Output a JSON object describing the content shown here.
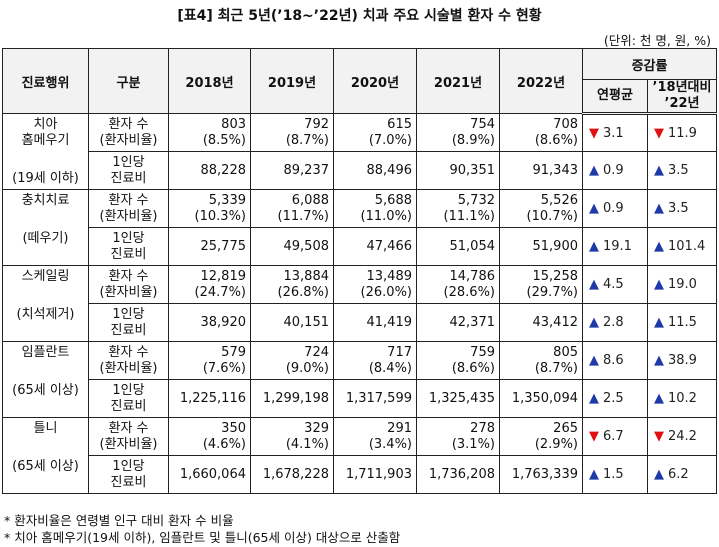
{
  "header": {
    "title": "[표4] 최근 5년(’18~’22년) 치과 주요 시술별 환자 수 현황",
    "unit": "(단위: 천 명, 원, %)"
  },
  "table": {
    "columns": [
      "진료행위",
      "구분",
      "2018년",
      "2019년",
      "2020년",
      "2021년",
      "2022년"
    ],
    "change_header": "증감률",
    "change_columns": [
      [
        "연평균"
      ],
      [
        "’18년대비",
        "’22년"
      ]
    ],
    "groups": [
      {
        "name": [
          "치아",
          "홈메우기"
        ],
        "sub": "(19세 이하)",
        "rows": [
          {
            "label": [
              "환자 수",
              "(환자비율)"
            ],
            "values": [
              [
                "803",
                "(8.5%)"
              ],
              [
                "792",
                "(8.7%)"
              ],
              [
                "615",
                "(7.0%)"
              ],
              [
                "754",
                "(8.9%)"
              ],
              [
                "708",
                "(8.6%)"
              ]
            ],
            "changes": [
              [
                "▼",
                "3.1"
              ],
              [
                "▼",
                "11.9"
              ]
            ]
          },
          {
            "label": [
              "1인당",
              "진료비"
            ],
            "values": [
              [
                "88,228"
              ],
              [
                "89,237"
              ],
              [
                "88,496"
              ],
              [
                "90,351"
              ],
              [
                "91,343"
              ]
            ],
            "changes": [
              [
                "▲",
                "0.9"
              ],
              [
                "▲",
                "3.5"
              ]
            ]
          }
        ]
      },
      {
        "name": [
          "충치치료"
        ],
        "sub": "(떼우기)",
        "rows": [
          {
            "label": [
              "환자 수",
              "(환자비율)"
            ],
            "values": [
              [
                "5,339",
                "(10.3%)"
              ],
              [
                "6,088",
                "(11.7%)"
              ],
              [
                "5,688",
                "(11.0%)"
              ],
              [
                "5,732",
                "(11.1%)"
              ],
              [
                "5,526",
                "(10.7%)"
              ]
            ],
            "changes": [
              [
                "▲",
                "0.9"
              ],
              [
                "▲",
                "3.5"
              ]
            ]
          },
          {
            "label": [
              "1인당",
              "진료비"
            ],
            "values": [
              [
                "25,775"
              ],
              [
                "49,508"
              ],
              [
                "47,466"
              ],
              [
                "51,054"
              ],
              [
                "51,900"
              ]
            ],
            "changes": [
              [
                "▲",
                "19.1"
              ],
              [
                "▲",
                "101.4"
              ]
            ]
          }
        ]
      },
      {
        "name": [
          "스케일링"
        ],
        "sub": "(치석제거)",
        "rows": [
          {
            "label": [
              "환자 수",
              "(환자비율)"
            ],
            "values": [
              [
                "12,819",
                "(24.7%)"
              ],
              [
                "13,884",
                "(26.8%)"
              ],
              [
                "13,489",
                "(26.0%)"
              ],
              [
                "14,786",
                "(28.6%)"
              ],
              [
                "15,258",
                "(29.7%)"
              ]
            ],
            "changes": [
              [
                "▲",
                "4.5"
              ],
              [
                "▲",
                "19.0"
              ]
            ]
          },
          {
            "label": [
              "1인당",
              "진료비"
            ],
            "values": [
              [
                "38,920"
              ],
              [
                "40,151"
              ],
              [
                "41,419"
              ],
              [
                "42,371"
              ],
              [
                "43,412"
              ]
            ],
            "changes": [
              [
                "▲",
                "2.8"
              ],
              [
                "▲",
                "11.5"
              ]
            ]
          }
        ]
      },
      {
        "name": [
          "임플란트"
        ],
        "sub": "(65세 이상)",
        "rows": [
          {
            "label": [
              "환자 수",
              "(환자비율)"
            ],
            "values": [
              [
                "579",
                "(7.6%)"
              ],
              [
                "724",
                "(9.0%)"
              ],
              [
                "717",
                "(8.4%)"
              ],
              [
                "759",
                "(8.6%)"
              ],
              [
                "805",
                "(8.7%)"
              ]
            ],
            "changes": [
              [
                "▲",
                "8.6"
              ],
              [
                "▲",
                "38.9"
              ]
            ]
          },
          {
            "label": [
              "1인당",
              "진료비"
            ],
            "values": [
              [
                "1,225,116"
              ],
              [
                "1,299,198"
              ],
              [
                "1,317,599"
              ],
              [
                "1,325,435"
              ],
              [
                "1,350,094"
              ]
            ],
            "changes": [
              [
                "▲",
                "2.5"
              ],
              [
                "▲",
                "10.2"
              ]
            ]
          }
        ]
      },
      {
        "name": [
          "틀니"
        ],
        "sub": "(65세 이상)",
        "rows": [
          {
            "label": [
              "환자 수",
              "(환자비율)"
            ],
            "values": [
              [
                "350",
                "(4.6%)"
              ],
              [
                "329",
                "(4.1%)"
              ],
              [
                "291",
                "(3.4%)"
              ],
              [
                "278",
                "(3.1%)"
              ],
              [
                "265",
                "(2.9%)"
              ]
            ],
            "changes": [
              [
                "▼",
                "6.7"
              ],
              [
                "▼",
                "24.2"
              ]
            ]
          },
          {
            "label": [
              "1인당",
              "진료비"
            ],
            "values": [
              [
                "1,660,064"
              ],
              [
                "1,678,228"
              ],
              [
                "1,711,903"
              ],
              [
                "1,736,208"
              ],
              [
                "1,763,339"
              ]
            ],
            "changes": [
              [
                "▲",
                "1.5"
              ],
              [
                "▲",
                "6.2"
              ]
            ]
          }
        ]
      }
    ]
  },
  "notes": [
    "* 환자비율은 연령별 인구 대비 환자 수 비율",
    "* 치아 홈메우기(19세 이하), 임플란트 및 틀니(65세 이상) 대상으로 산출함"
  ]
}
